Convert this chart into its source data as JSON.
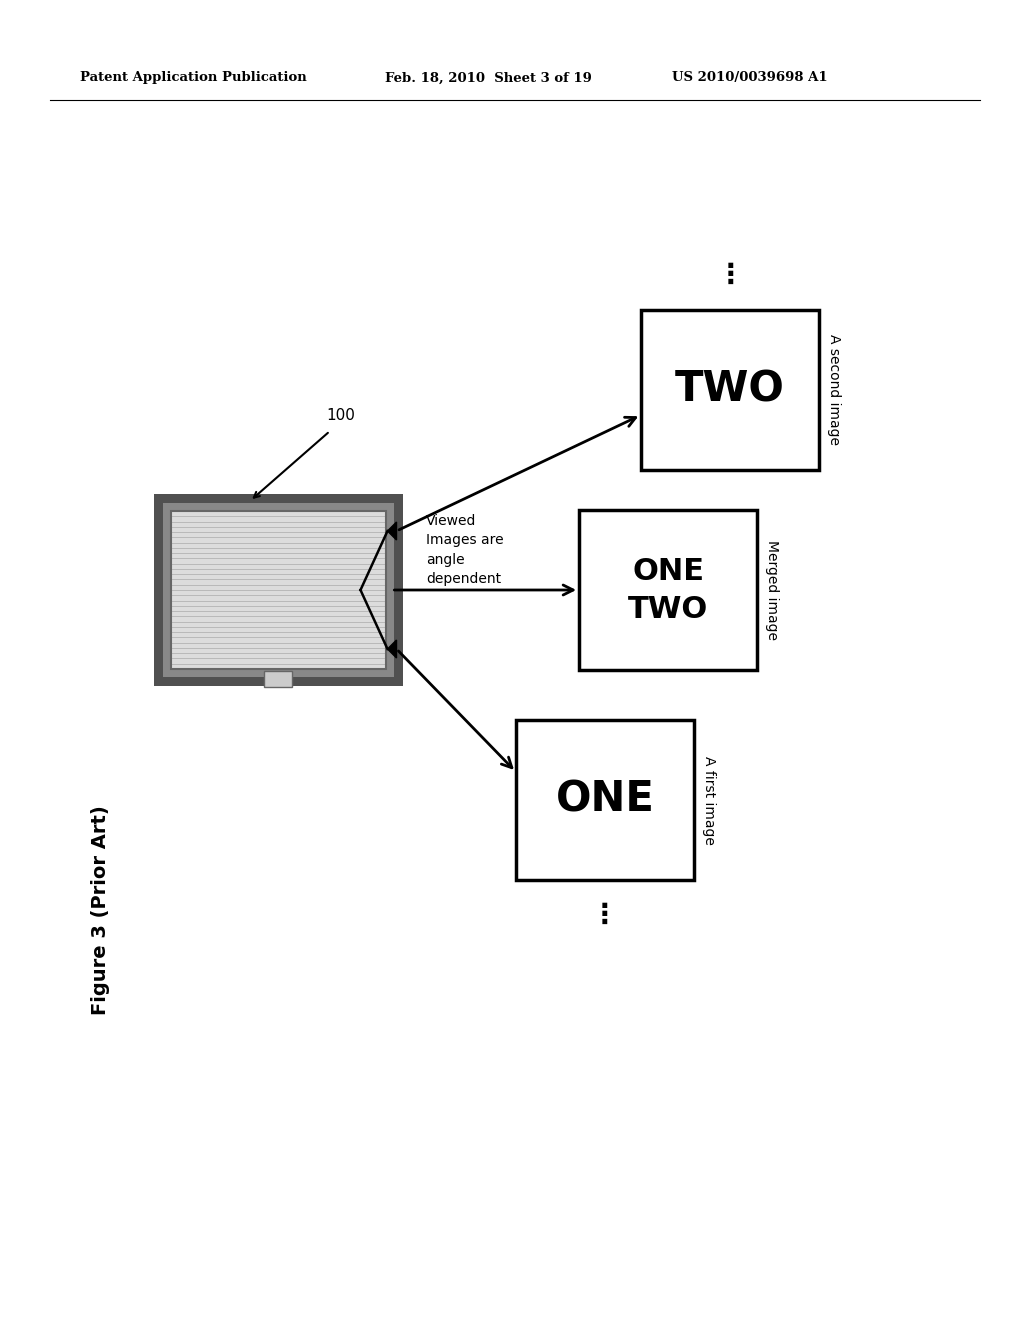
{
  "bg_color": "#ffffff",
  "header_left": "Patent Application Publication",
  "header_mid": "Feb. 18, 2010  Sheet 3 of 19",
  "header_right": "US 2010/0039698 A1",
  "figure_label": "Figure 3 (Prior Art)",
  "label_100": "100",
  "label_viewed": "Viewed\nImages are\nangle\ndependent",
  "box_one": "ONE",
  "box_one_sub": "A first image",
  "box_merged_sub": "Merged image",
  "box_two": "TWO",
  "box_two_sub": "A second image",
  "display_frame_color": "#555555",
  "display_screen_color": "#dcdcdc",
  "display_line_color": "#aaaaaa",
  "display_inner_color": "#888888"
}
